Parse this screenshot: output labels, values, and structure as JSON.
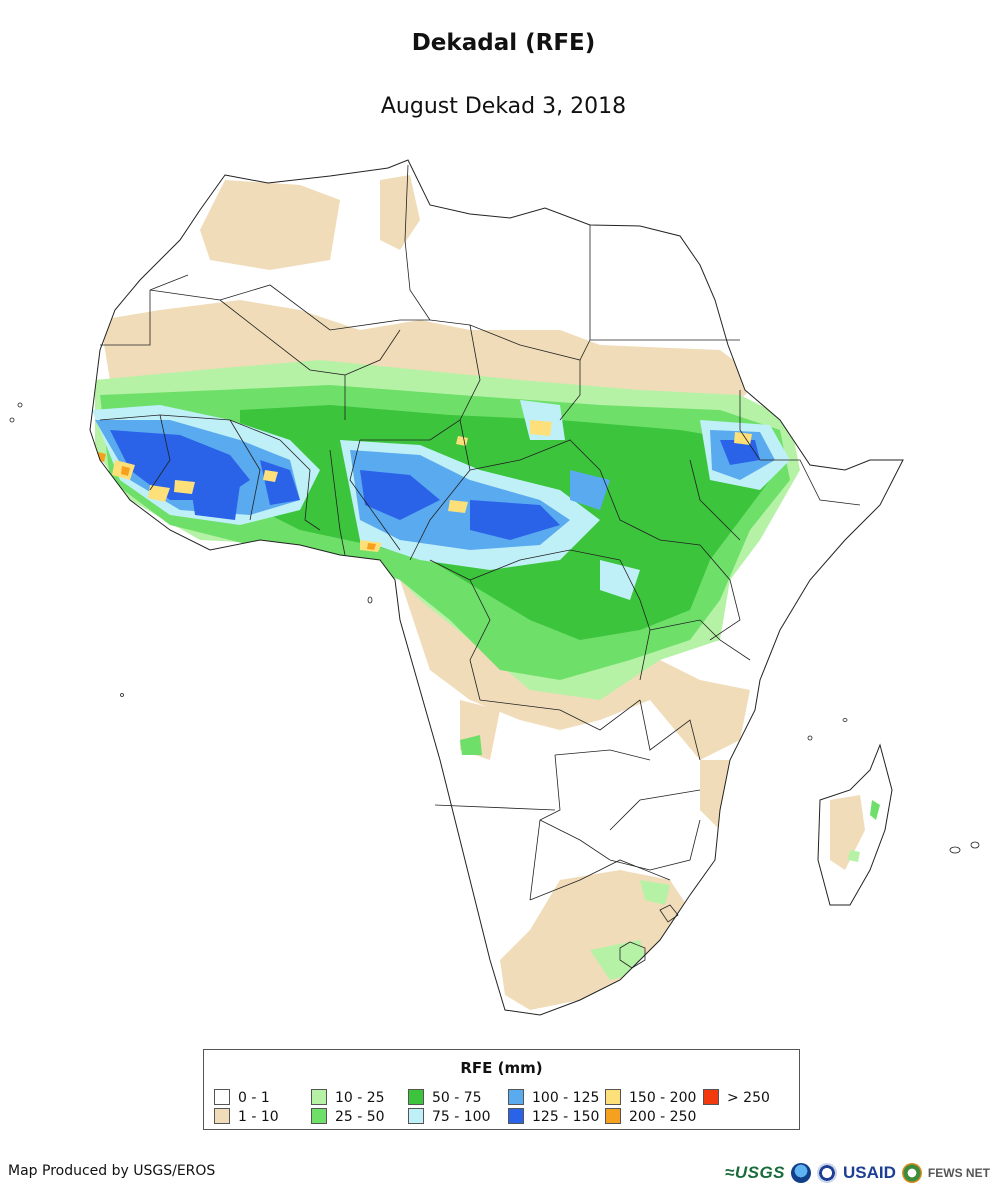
{
  "title": "Dekadal (RFE)",
  "subtitle": "August Dekad 3, 2018",
  "legend": {
    "title": "RFE (mm)",
    "items": [
      {
        "label": "0 - 1",
        "color": "#ffffff"
      },
      {
        "label": "1 - 10",
        "color": "#f0dcb8"
      },
      {
        "label": "10 - 25",
        "color": "#b6f2a6"
      },
      {
        "label": "25 - 50",
        "color": "#6ee06a"
      },
      {
        "label": "50 - 75",
        "color": "#3cc43c"
      },
      {
        "label": "75 - 100",
        "color": "#bff0f7"
      },
      {
        "label": "100 - 125",
        "color": "#5aaaf0"
      },
      {
        "label": "125 - 150",
        "color": "#2a62e8"
      },
      {
        "label": "150 - 200",
        "color": "#fde07a"
      },
      {
        "label": "200 - 250",
        "color": "#f5a01e"
      },
      {
        "label": "> 250",
        "color": "#f23a0e"
      }
    ]
  },
  "credit": "Map Produced by USGS/EROS",
  "logos": {
    "usgs": "≈USGS",
    "usaid": "USAID",
    "fews": "FEWS NET"
  }
}
